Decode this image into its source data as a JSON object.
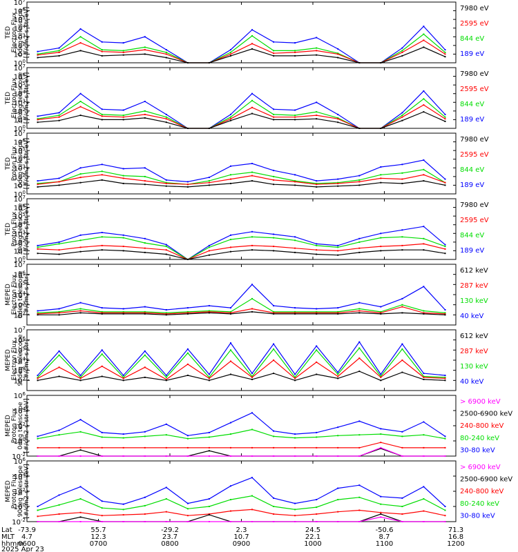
{
  "colors": {
    "black": "#000000",
    "red": "#ff0000",
    "green": "#00dd00",
    "blue": "#0000ff",
    "magenta": "#ff00ff"
  },
  "chart_data": [
    {
      "type": "line",
      "ylabel": [
        "TED",
        "Electron Flux",
        "0deg telescope",
        "[#/cm2-s-str-eV]"
      ],
      "y_log_range": [
        0,
        7
      ],
      "yticks": [
        "10^0",
        "10^1",
        "10^2",
        "10^3",
        "10^4",
        "10^5",
        "10^6",
        "10^7"
      ],
      "series": [
        {
          "name": "7980 eV",
          "color": "#000000",
          "values": [
            0.6,
            0.8,
            1.4,
            0.8,
            0.9,
            1.0,
            0.6,
            0.0,
            0.0,
            0.8,
            1.6,
            0.8,
            0.8,
            0.9,
            0.6,
            0.0,
            0.0,
            0.8,
            1.8,
            0.7
          ]
        },
        {
          "name": "2595 eV",
          "color": "#ff0000",
          "values": [
            0.9,
            1.2,
            2.3,
            1.3,
            1.2,
            1.5,
            1.0,
            0.0,
            0.0,
            1.0,
            2.2,
            1.1,
            1.2,
            1.4,
            1.0,
            0.0,
            0.0,
            1.2,
            2.6,
            1.0
          ]
        },
        {
          "name": "844 eV",
          "color": "#00dd00",
          "values": [
            1.0,
            1.4,
            3.0,
            1.5,
            1.4,
            1.8,
            1.2,
            0.0,
            0.0,
            1.2,
            3.1,
            1.4,
            1.4,
            1.7,
            1.1,
            0.0,
            0.0,
            1.4,
            3.3,
            1.2
          ]
        },
        {
          "name": "189 eV",
          "color": "#0000ff",
          "values": [
            1.3,
            1.7,
            3.9,
            2.4,
            2.3,
            3.0,
            1.5,
            0.0,
            0.0,
            1.5,
            3.8,
            2.4,
            2.3,
            2.9,
            1.6,
            0.0,
            0.0,
            1.7,
            4.2,
            1.5
          ]
        }
      ]
    },
    {
      "type": "line",
      "ylabel": [
        "TED",
        "Electron Flux",
        "30deg telescope",
        "[#/cm2-s-str-eV]"
      ],
      "y_log_range": [
        0,
        7
      ],
      "yticks": [
        "10^0",
        "10^1",
        "10^2",
        "10^3",
        "10^4",
        "10^5",
        "10^6",
        "10^7"
      ],
      "series": [
        {
          "name": "7980 eV",
          "color": "#000000",
          "values": [
            0.7,
            0.9,
            1.5,
            1.0,
            1.0,
            1.2,
            0.7,
            0.0,
            0.0,
            0.9,
            1.7,
            1.0,
            1.0,
            1.1,
            0.7,
            0.0,
            0.0,
            0.9,
            1.9,
            0.8
          ]
        },
        {
          "name": "2595 eV",
          "color": "#ff0000",
          "values": [
            1.0,
            1.3,
            2.5,
            1.4,
            1.3,
            1.6,
            1.1,
            0.0,
            0.0,
            1.1,
            2.4,
            1.3,
            1.3,
            1.5,
            1.1,
            0.0,
            0.0,
            1.3,
            2.7,
            1.1
          ]
        },
        {
          "name": "844 eV",
          "color": "#00dd00",
          "values": [
            1.1,
            1.5,
            3.1,
            1.6,
            1.5,
            2.0,
            1.3,
            0.0,
            0.0,
            1.3,
            3.2,
            1.6,
            1.5,
            1.9,
            1.2,
            0.0,
            0.0,
            1.5,
            3.4,
            1.3
          ]
        },
        {
          "name": "189 eV",
          "color": "#0000ff",
          "values": [
            1.4,
            1.8,
            4.0,
            2.2,
            2.1,
            3.1,
            1.6,
            0.0,
            0.0,
            1.6,
            4.0,
            2.2,
            2.1,
            3.0,
            1.6,
            0.0,
            0.0,
            1.8,
            4.3,
            1.6
          ]
        }
      ]
    },
    {
      "type": "line",
      "ylabel": [
        "TED",
        "Proton Flux",
        "0deg telescope",
        "[#/cm2-s-str-eV]"
      ],
      "y_log_range": [
        0,
        7
      ],
      "yticks": [
        "10^0",
        "10^1",
        "10^2",
        "10^3",
        "10^4",
        "10^5",
        "10^6",
        "10^7"
      ],
      "series": [
        {
          "name": "7980 eV",
          "color": "#000000",
          "values": [
            0.8,
            1.0,
            1.3,
            1.6,
            1.2,
            1.1,
            0.9,
            0.8,
            1.0,
            1.2,
            1.5,
            1.1,
            1.0,
            0.8,
            0.9,
            1.0,
            1.3,
            1.2,
            1.5,
            1.0
          ]
        },
        {
          "name": "2595 eV",
          "color": "#ff0000",
          "values": [
            1.1,
            1.4,
            1.9,
            2.2,
            1.8,
            1.5,
            1.2,
            1.1,
            1.3,
            1.7,
            2.1,
            1.6,
            1.4,
            1.1,
            1.2,
            1.4,
            1.8,
            1.7,
            2.2,
            1.3
          ]
        },
        {
          "name": "844 eV",
          "color": "#00dd00",
          "values": [
            1.2,
            1.4,
            2.3,
            2.6,
            2.1,
            2.0,
            1.3,
            1.1,
            1.5,
            2.2,
            2.5,
            2.0,
            1.5,
            1.2,
            1.3,
            1.6,
            2.2,
            2.4,
            2.8,
            1.3
          ]
        },
        {
          "name": "189 eV",
          "color": "#0000ff",
          "values": [
            1.5,
            1.8,
            3.0,
            3.4,
            2.9,
            3.0,
            1.6,
            1.4,
            1.9,
            3.2,
            3.5,
            2.7,
            2.2,
            1.5,
            1.7,
            2.1,
            3.1,
            3.4,
            3.9,
            1.7
          ]
        }
      ]
    },
    {
      "type": "line",
      "ylabel": [
        "TED",
        "Proton Flux",
        "30deg telescope",
        "[#/cm2-s-str-eV]"
      ],
      "y_log_range": [
        0,
        7
      ],
      "yticks": [
        "10^0",
        "10^1",
        "10^2",
        "10^3",
        "10^4",
        "10^5",
        "10^6",
        "10^7"
      ],
      "series": [
        {
          "name": "7980 eV",
          "color": "#000000",
          "values": [
            0.7,
            0.6,
            0.9,
            1.1,
            1.0,
            0.8,
            0.6,
            0.0,
            0.5,
            0.9,
            1.1,
            1.0,
            0.8,
            0.6,
            0.5,
            0.8,
            1.0,
            1.1,
            1.1,
            0.7
          ]
        },
        {
          "name": "2595 eV",
          "color": "#ff0000",
          "values": [
            1.2,
            1.1,
            1.4,
            1.6,
            1.5,
            1.3,
            1.1,
            0.0,
            1.0,
            1.4,
            1.6,
            1.5,
            1.3,
            1.1,
            1.0,
            1.3,
            1.5,
            1.6,
            1.8,
            1.2
          ]
        },
        {
          "name": "844 eV",
          "color": "#00dd00",
          "values": [
            1.4,
            1.8,
            2.2,
            2.6,
            2.5,
            1.9,
            1.5,
            0.0,
            1.4,
            2.3,
            2.6,
            2.5,
            2.2,
            1.6,
            1.4,
            2.0,
            2.5,
            2.6,
            2.4,
            1.5
          ]
        },
        {
          "name": "189 eV",
          "color": "#0000ff",
          "values": [
            1.6,
            2.0,
            2.8,
            3.1,
            2.8,
            2.4,
            1.7,
            0.0,
            1.6,
            2.8,
            3.2,
            2.9,
            2.6,
            1.8,
            1.6,
            2.4,
            3.0,
            3.4,
            3.8,
            1.7
          ]
        }
      ]
    },
    {
      "type": "line",
      "ylabel": [
        "MEPED",
        "Electron Flux",
        "0deg telescope",
        "[#/cm2-s-str]"
      ],
      "y_log_range": [
        1,
        7
      ],
      "yticks": [
        "10^2",
        "10^3",
        "10^4",
        "10^5",
        "10^6",
        "10^7"
      ],
      "series": [
        {
          "name": "612 keV",
          "color": "#000000",
          "values": [
            2.0,
            2.0,
            2.2,
            2.1,
            2.1,
            2.1,
            2.0,
            2.1,
            2.2,
            2.1,
            2.3,
            2.1,
            2.1,
            2.1,
            2.1,
            2.2,
            2.1,
            2.2,
            2.1,
            2.0
          ]
        },
        {
          "name": "287 keV",
          "color": "#ff0000",
          "values": [
            2.1,
            2.2,
            2.4,
            2.2,
            2.2,
            2.2,
            2.1,
            2.2,
            2.3,
            2.2,
            2.6,
            2.2,
            2.2,
            2.2,
            2.2,
            2.4,
            2.2,
            2.8,
            2.2,
            2.1
          ]
        },
        {
          "name": "130 keV",
          "color": "#00dd00",
          "values": [
            2.2,
            2.3,
            2.6,
            2.3,
            2.3,
            2.3,
            2.2,
            2.3,
            2.4,
            2.3,
            3.6,
            2.3,
            2.3,
            2.3,
            2.3,
            2.6,
            2.3,
            3.0,
            2.4,
            2.2
          ]
        },
        {
          "name": "40 keV",
          "color": "#0000ff",
          "values": [
            2.4,
            2.6,
            3.2,
            2.7,
            2.6,
            2.8,
            2.5,
            2.7,
            2.9,
            2.7,
            5.0,
            2.9,
            2.7,
            2.6,
            2.7,
            3.2,
            2.8,
            3.6,
            4.8,
            2.5
          ]
        }
      ]
    },
    {
      "type": "line",
      "ylabel": [
        "MEPED",
        "Electron Flux",
        "90deg telescope",
        "[#/cm2-s-str]"
      ],
      "y_log_range": [
        1,
        7
      ],
      "yticks": [
        "10^2",
        "10^3",
        "10^4",
        "10^5",
        "10^6",
        "10^7"
      ],
      "series": [
        {
          "name": "612 keV",
          "color": "#000000",
          "values": [
            2.0,
            2.4,
            2.0,
            2.4,
            2.0,
            2.3,
            2.0,
            2.5,
            2.0,
            2.6,
            2.1,
            2.7,
            2.0,
            2.6,
            2.2,
            2.9,
            2.0,
            2.8,
            2.1,
            2.0
          ]
        },
        {
          "name": "287 keV",
          "color": "#ff0000",
          "values": [
            2.2,
            3.3,
            2.2,
            3.4,
            2.2,
            3.3,
            2.1,
            3.6,
            2.2,
            3.9,
            2.3,
            4.0,
            2.2,
            3.8,
            2.4,
            4.2,
            2.3,
            4.0,
            2.3,
            2.2
          ]
        },
        {
          "name": "130 keV",
          "color": "#00dd00",
          "values": [
            2.3,
            4.5,
            2.3,
            4.6,
            2.3,
            4.5,
            2.3,
            4.7,
            2.3,
            5.0,
            2.4,
            5.1,
            2.3,
            5.0,
            2.6,
            5.2,
            2.4,
            5.1,
            2.4,
            2.3
          ]
        },
        {
          "name": "40 keV",
          "color": "#0000ff",
          "values": [
            2.5,
            4.9,
            2.5,
            5.0,
            2.5,
            4.9,
            2.5,
            5.1,
            2.6,
            5.7,
            2.7,
            5.6,
            2.6,
            5.4,
            2.8,
            5.8,
            2.6,
            5.6,
            2.7,
            2.5
          ]
        }
      ]
    },
    {
      "type": "line",
      "ylabel": [
        "MEPED",
        "Proton Flux",
        "0deg telescope",
        "[#/cm2-s-str-keV]"
      ],
      "y_log_range": [
        -2,
        6
      ],
      "yticks": [
        "10^-2",
        "10^0",
        "10^2",
        "10^4",
        "10^6"
      ],
      "series": [
        {
          "name": "> 6900 keV",
          "color": "#ff00ff",
          "values": [
            -2,
            -2,
            -2,
            -2,
            -2,
            -2,
            -2,
            -2,
            -2,
            -2,
            -2,
            -2,
            -2,
            -2,
            -2,
            -2,
            -0.9,
            -2,
            -2,
            -2
          ]
        },
        {
          "name": "2500-6900 keV",
          "color": "#000000",
          "values": [
            -2,
            -2,
            -1.2,
            -2,
            -2,
            -2,
            -2,
            -2,
            -1.3,
            -2,
            -2,
            -2,
            -2,
            -2,
            -2,
            -2,
            -1.0,
            -2,
            -2,
            -2
          ]
        },
        {
          "name": "240-800 keV",
          "color": "#ff0000",
          "values": [
            -0.9,
            -0.9,
            -0.9,
            -0.9,
            -0.9,
            -0.9,
            -0.9,
            -0.9,
            -0.9,
            -0.9,
            -0.9,
            -0.9,
            -0.9,
            -0.9,
            -0.9,
            -0.9,
            -0.2,
            -0.9,
            -0.9,
            -0.9
          ]
        },
        {
          "name": "80-240 keV",
          "color": "#00dd00",
          "values": [
            0.3,
            0.8,
            1.2,
            0.5,
            0.4,
            0.6,
            0.8,
            0.3,
            0.5,
            0.9,
            1.5,
            0.6,
            0.4,
            0.5,
            0.7,
            0.8,
            0.9,
            0.6,
            0.8,
            0.3
          ]
        },
        {
          "name": "30-80 keV",
          "color": "#0000ff",
          "values": [
            0.6,
            1.4,
            2.8,
            1.1,
            0.9,
            1.2,
            2.2,
            0.7,
            1.1,
            2.4,
            3.7,
            1.3,
            0.9,
            1.1,
            1.8,
            2.6,
            1.6,
            1.2,
            2.5,
            0.6
          ]
        }
      ]
    },
    {
      "type": "line",
      "ylabel": [
        "MEPED",
        "Proton Flux",
        "90deg telescope",
        "[#/cm2-s-str-keV]"
      ],
      "y_log_range": [
        -2,
        6
      ],
      "yticks": [
        "10^-2",
        "10^0",
        "10^2",
        "10^4",
        "10^6"
      ],
      "series": [
        {
          "name": "> 6900 keV",
          "color": "#ff00ff",
          "values": [
            -2,
            -2,
            -2,
            -2,
            -2,
            -2,
            -2,
            -2,
            -2,
            -2,
            -2,
            -2,
            -2,
            -2,
            -2,
            -2,
            -1.4,
            -2,
            -2,
            -2
          ]
        },
        {
          "name": "2500-6900 keV",
          "color": "#000000",
          "values": [
            -2,
            -2,
            -1.4,
            -2,
            -2,
            -2,
            -2,
            -2,
            -1.1,
            -2,
            -2,
            -2,
            -2,
            -2,
            -2,
            -2,
            -1.0,
            -2,
            -2,
            -2
          ]
        },
        {
          "name": "240-800 keV",
          "color": "#ff0000",
          "values": [
            -1.3,
            -1.0,
            -0.8,
            -1.2,
            -1.1,
            -1.0,
            -0.7,
            -1.2,
            -1.0,
            -0.6,
            -0.4,
            -1.0,
            -1.2,
            -1.0,
            -0.7,
            -0.5,
            -0.8,
            -1.0,
            -0.6,
            -1.2
          ]
        },
        {
          "name": "80-240 keV",
          "color": "#00dd00",
          "values": [
            -0.5,
            0.2,
            1.0,
            -0.2,
            -0.4,
            0.1,
            1.0,
            -0.3,
            0.0,
            0.9,
            1.4,
            0.0,
            -0.4,
            -0.1,
            0.9,
            1.2,
            0.3,
            0.0,
            1.0,
            -0.5
          ]
        },
        {
          "name": "30-80 keV",
          "color": "#0000ff",
          "values": [
            0.0,
            1.5,
            2.6,
            0.7,
            0.3,
            1.2,
            2.5,
            0.4,
            1.0,
            2.7,
            3.8,
            1.1,
            0.4,
            0.9,
            2.4,
            2.8,
            1.3,
            1.1,
            2.6,
            0.0
          ]
        }
      ]
    }
  ],
  "x_axis": {
    "rows": [
      {
        "label": "Lat",
        "values": [
          "-73.9",
          "55.7",
          "-29.2",
          "2.3",
          "24.5",
          "-50.6",
          "71.3"
        ]
      },
      {
        "label": "MLT",
        "values": [
          "4.7",
          "12.3",
          "23.7",
          "10.7",
          "22.1",
          "8.7",
          "16.8"
        ]
      },
      {
        "label": "hhmm",
        "values": [
          "0600",
          "0700",
          "0800",
          "0900",
          "1000",
          "1100",
          "1200"
        ]
      }
    ],
    "date": "2025 Apr 23"
  }
}
